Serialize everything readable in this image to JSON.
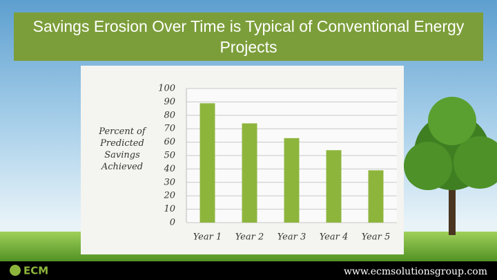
{
  "chart_data": {
    "type": "bar",
    "title": "Savings Erosion Over Time is Typical of Conventional Energy Projects",
    "y_label": "Percent of Predicted Savings Achieved",
    "categories": [
      "Year 1",
      "Year 2",
      "Year 3",
      "Year 4",
      "Year 5"
    ],
    "values": [
      89,
      74,
      63,
      54,
      39
    ],
    "color": "#8db53c",
    "ylim": [
      0,
      100
    ],
    "yticks": [
      0,
      10,
      20,
      30,
      40,
      50,
      60,
      70,
      80,
      90,
      100
    ],
    "grid": true
  },
  "footer": {
    "logo": "ECM",
    "url": "www.ecmsolutionsgroup.com"
  }
}
